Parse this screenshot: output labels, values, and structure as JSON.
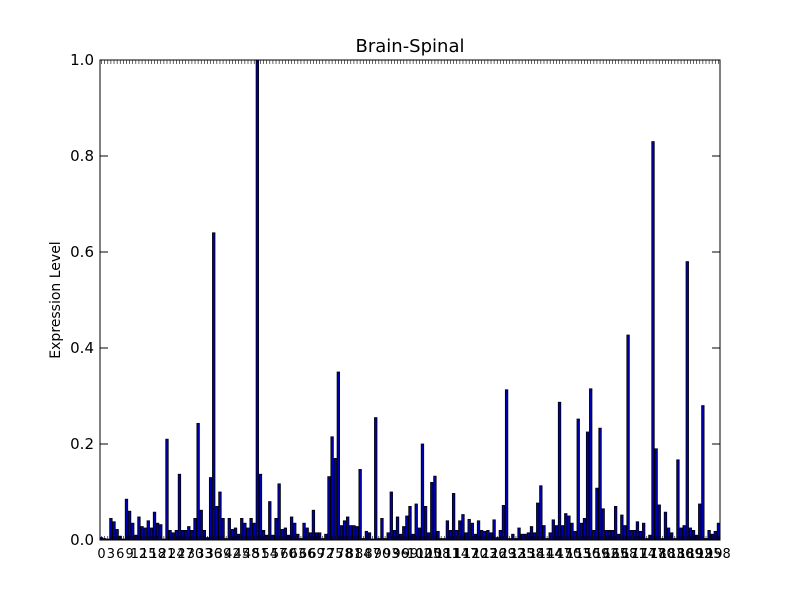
{
  "chart_data": {
    "type": "bar",
    "title": "Brain-Spinal",
    "xlabel": "",
    "ylabel": "Expression Level",
    "ylim": [
      0,
      1.0
    ],
    "yticks": [
      "0.0",
      "0.2",
      "0.4",
      "0.6",
      "0.8",
      "1.0"
    ],
    "bar_color": "#0000b3",
    "edge_color": "#000000",
    "grid": false,
    "legend": "none",
    "x_tick_labels_note": "dense overlapping index labels along x-axis",
    "values": [
      0.005,
      0.003,
      0.002,
      0.045,
      0.038,
      0.022,
      0.008,
      0.002,
      0.085,
      0.06,
      0.035,
      0.01,
      0.048,
      0.028,
      0.025,
      0.04,
      0.025,
      0.058,
      0.035,
      0.032,
      0.002,
      0.21,
      0.02,
      0.015,
      0.02,
      0.137,
      0.02,
      0.02,
      0.028,
      0.02,
      0.045,
      0.243,
      0.062,
      0.02,
      0.005,
      0.13,
      0.64,
      0.07,
      0.1,
      0.045,
      0.003,
      0.045,
      0.022,
      0.025,
      0.012,
      0.045,
      0.035,
      0.025,
      0.045,
      0.035,
      1.0,
      0.137,
      0.02,
      0.01,
      0.08,
      0.01,
      0.045,
      0.117,
      0.022,
      0.025,
      0.01,
      0.048,
      0.035,
      0.012,
      0.003,
      0.035,
      0.025,
      0.015,
      0.062,
      0.015,
      0.015,
      0.003,
      0.012,
      0.132,
      0.215,
      0.17,
      0.35,
      0.03,
      0.04,
      0.048,
      0.03,
      0.03,
      0.028,
      0.147,
      0.003,
      0.018,
      0.015,
      0.002,
      0.255,
      0.003,
      0.045,
      0.003,
      0.015,
      0.1,
      0.02,
      0.048,
      0.012,
      0.028,
      0.05,
      0.07,
      0.012,
      0.075,
      0.025,
      0.2,
      0.07,
      0.015,
      0.12,
      0.133,
      0.018,
      0.003,
      0.003,
      0.04,
      0.02,
      0.097,
      0.02,
      0.04,
      0.053,
      0.015,
      0.043,
      0.035,
      0.012,
      0.04,
      0.02,
      0.018,
      0.02,
      0.015,
      0.042,
      0.005,
      0.02,
      0.072,
      0.313,
      0.003,
      0.012,
      0.003,
      0.025,
      0.012,
      0.012,
      0.015,
      0.028,
      0.015,
      0.077,
      0.113,
      0.03,
      0.003,
      0.015,
      0.042,
      0.03,
      0.287,
      0.03,
      0.055,
      0.05,
      0.035,
      0.018,
      0.252,
      0.035,
      0.045,
      0.225,
      0.315,
      0.02,
      0.108,
      0.233,
      0.065,
      0.02,
      0.02,
      0.02,
      0.07,
      0.012,
      0.052,
      0.03,
      0.427,
      0.02,
      0.02,
      0.038,
      0.018,
      0.035,
      0.003,
      0.01,
      0.83,
      0.19,
      0.073,
      0.003,
      0.058,
      0.025,
      0.015,
      0.003,
      0.167,
      0.025,
      0.03,
      0.58,
      0.025,
      0.02,
      0.01,
      0.075,
      0.28,
      0.003,
      0.02,
      0.012,
      0.018,
      0.035
    ]
  }
}
